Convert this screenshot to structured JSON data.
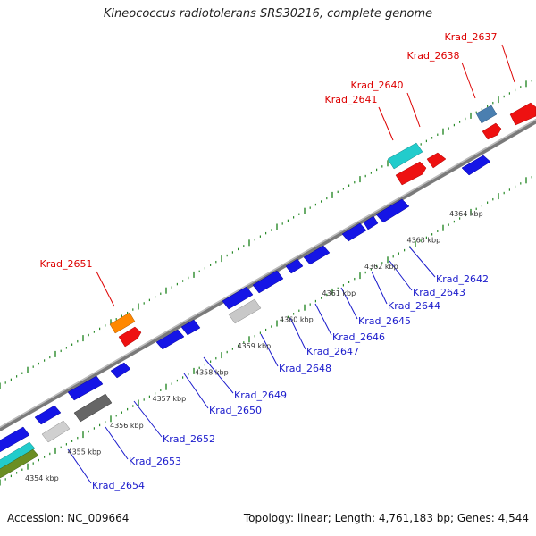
{
  "title": "Kineococcus radiotolerans SRS30216, complete genome",
  "footer": {
    "accession": "Accession: NC_009664",
    "summary": "Topology: linear; Length: 4,761,183 bp; Genes: 4,544"
  },
  "colors": {
    "backbone": "#888888",
    "tick": "#2a8a2a",
    "blue_gene": "#1010e0",
    "red_gene": "#ee0000",
    "red_label": "#dd0000",
    "blue_label": "#1a1acc",
    "scale_label": "#333333"
  },
  "scale_labels": [
    "4354 kbp",
    "4355 kbp",
    "4356 kbp",
    "4357 kbp",
    "4358 kbp",
    "4359 kbp",
    "4360 kbp",
    "4361 kbp",
    "4362 kbp",
    "4363 kbp",
    "4364 kbp"
  ],
  "top_gene_labels": [
    "Krad_2637",
    "Krad_2638",
    "Krad_2640",
    "Krad_2641",
    "Krad_2651"
  ],
  "bottom_gene_labels": [
    "Krad_2642",
    "Krad_2643",
    "Krad_2644",
    "Krad_2645",
    "Krad_2646",
    "Krad_2647",
    "Krad_2648",
    "Krad_2649",
    "Krad_2650",
    "Krad_2652",
    "Krad_2653",
    "Krad_2654"
  ]
}
